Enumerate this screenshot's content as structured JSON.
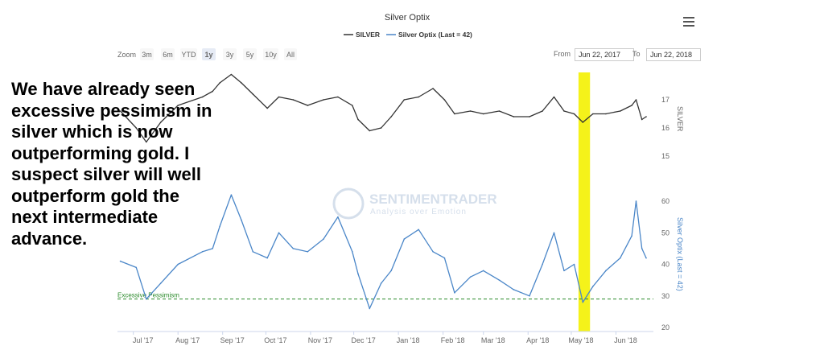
{
  "chart_data": {
    "type": "line",
    "title": "Silver Optix",
    "legend": [
      "SILVER",
      "Silver Optix (Last = 42)"
    ],
    "x_ticks": [
      "Jul '17",
      "Aug '17",
      "Sep '17",
      "Oct '17",
      "Nov '17",
      "Dec '17",
      "Jan '18",
      "Feb '18",
      "Mar '18",
      "Apr '18",
      "May '18",
      "Jun '18"
    ],
    "silver_axis": {
      "label": "SILVER",
      "ticks": [
        17,
        16,
        15
      ],
      "ylim": [
        14.5,
        17.8
      ]
    },
    "optix_axis": {
      "label": "Silver Optix (Last = 42)",
      "ticks": [
        60,
        50,
        40,
        30,
        20
      ],
      "ylim": [
        18,
        64
      ]
    },
    "series": [
      {
        "name": "SILVER",
        "color": "#333333",
        "points": [
          [
            "2017-06-22",
            16.6
          ],
          [
            "2017-07-03",
            16.0
          ],
          [
            "2017-07-10",
            15.5
          ],
          [
            "2017-07-20",
            16.2
          ],
          [
            "2017-08-01",
            16.8
          ],
          [
            "2017-08-18",
            17.1
          ],
          [
            "2017-08-25",
            17.3
          ],
          [
            "2017-08-30",
            17.6
          ],
          [
            "2017-09-07",
            17.9
          ],
          [
            "2017-09-14",
            17.6
          ],
          [
            "2017-09-22",
            17.2
          ],
          [
            "2017-10-02",
            16.7
          ],
          [
            "2017-10-10",
            17.1
          ],
          [
            "2017-10-20",
            17.0
          ],
          [
            "2017-10-30",
            16.8
          ],
          [
            "2017-11-10",
            17.0
          ],
          [
            "2017-11-20",
            17.1
          ],
          [
            "2017-11-30",
            16.8
          ],
          [
            "2017-12-04",
            16.3
          ],
          [
            "2017-12-12",
            15.9
          ],
          [
            "2017-12-20",
            16.0
          ],
          [
            "2017-12-27",
            16.4
          ],
          [
            "2018-01-05",
            17.0
          ],
          [
            "2018-01-15",
            17.1
          ],
          [
            "2018-01-25",
            17.4
          ],
          [
            "2018-02-02",
            17.0
          ],
          [
            "2018-02-09",
            16.5
          ],
          [
            "2018-02-20",
            16.6
          ],
          [
            "2018-03-01",
            16.5
          ],
          [
            "2018-03-12",
            16.6
          ],
          [
            "2018-03-22",
            16.4
          ],
          [
            "2018-04-02",
            16.4
          ],
          [
            "2018-04-11",
            16.6
          ],
          [
            "2018-04-19",
            17.1
          ],
          [
            "2018-04-26",
            16.6
          ],
          [
            "2018-05-03",
            16.5
          ],
          [
            "2018-05-09",
            16.2
          ],
          [
            "2018-05-16",
            16.5
          ],
          [
            "2018-05-25",
            16.5
          ],
          [
            "2018-06-04",
            16.6
          ],
          [
            "2018-06-12",
            16.8
          ],
          [
            "2018-06-15",
            17.0
          ],
          [
            "2018-06-19",
            16.3
          ],
          [
            "2018-06-22",
            16.4
          ]
        ]
      },
      {
        "name": "Silver Optix (Last = 42)",
        "color": "#4a86c8",
        "points": [
          [
            "2017-06-22",
            41
          ],
          [
            "2017-07-03",
            39
          ],
          [
            "2017-07-10",
            29
          ],
          [
            "2017-07-20",
            34
          ],
          [
            "2017-08-01",
            40
          ],
          [
            "2017-08-18",
            44
          ],
          [
            "2017-08-25",
            45
          ],
          [
            "2017-08-30",
            52
          ],
          [
            "2017-09-07",
            62
          ],
          [
            "2017-09-14",
            54
          ],
          [
            "2017-09-22",
            44
          ],
          [
            "2017-10-02",
            42
          ],
          [
            "2017-10-10",
            50
          ],
          [
            "2017-10-20",
            45
          ],
          [
            "2017-10-30",
            44
          ],
          [
            "2017-11-10",
            48
          ],
          [
            "2017-11-20",
            55
          ],
          [
            "2017-11-30",
            44
          ],
          [
            "2017-12-04",
            37
          ],
          [
            "2017-12-12",
            26
          ],
          [
            "2017-12-20",
            34
          ],
          [
            "2017-12-27",
            38
          ],
          [
            "2018-01-05",
            48
          ],
          [
            "2018-01-15",
            51
          ],
          [
            "2018-01-25",
            44
          ],
          [
            "2018-02-02",
            42
          ],
          [
            "2018-02-09",
            31
          ],
          [
            "2018-02-20",
            36
          ],
          [
            "2018-03-01",
            38
          ],
          [
            "2018-03-12",
            35
          ],
          [
            "2018-03-22",
            32
          ],
          [
            "2018-04-02",
            30
          ],
          [
            "2018-04-11",
            40
          ],
          [
            "2018-04-19",
            50
          ],
          [
            "2018-04-26",
            38
          ],
          [
            "2018-05-03",
            40
          ],
          [
            "2018-05-09",
            28
          ],
          [
            "2018-05-16",
            33
          ],
          [
            "2018-05-25",
            38
          ],
          [
            "2018-06-04",
            42
          ],
          [
            "2018-06-12",
            49
          ],
          [
            "2018-06-15",
            60
          ],
          [
            "2018-06-19",
            45
          ],
          [
            "2018-06-22",
            42
          ]
        ]
      }
    ],
    "threshold": {
      "label": "Excessive Pessimism",
      "value": 29,
      "color": "#2a8a2a"
    },
    "highlight": {
      "start": "2018-05-06",
      "end": "2018-05-14",
      "color": "#f5f21a"
    },
    "x_range": [
      "2017-06-20",
      "2018-06-27"
    ],
    "watermark": {
      "title": "SENTIMENTRADER",
      "tagline": "Analysis over Emotion"
    }
  },
  "controls": {
    "zoom_label": "Zoom",
    "zoom_options": [
      "3m",
      "6m",
      "YTD",
      "1y",
      "3y",
      "5y",
      "10y",
      "All"
    ],
    "zoom_selected": "1y",
    "from_label": "From",
    "from_value": "Jun 22, 2017",
    "to_label": "To",
    "to_value": "Jun 22, 2018"
  },
  "annotation_text": "We have already seen excessive pessimism in silver which is now outperforming gold. I suspect silver will well outperform gold the next intermediate advance."
}
